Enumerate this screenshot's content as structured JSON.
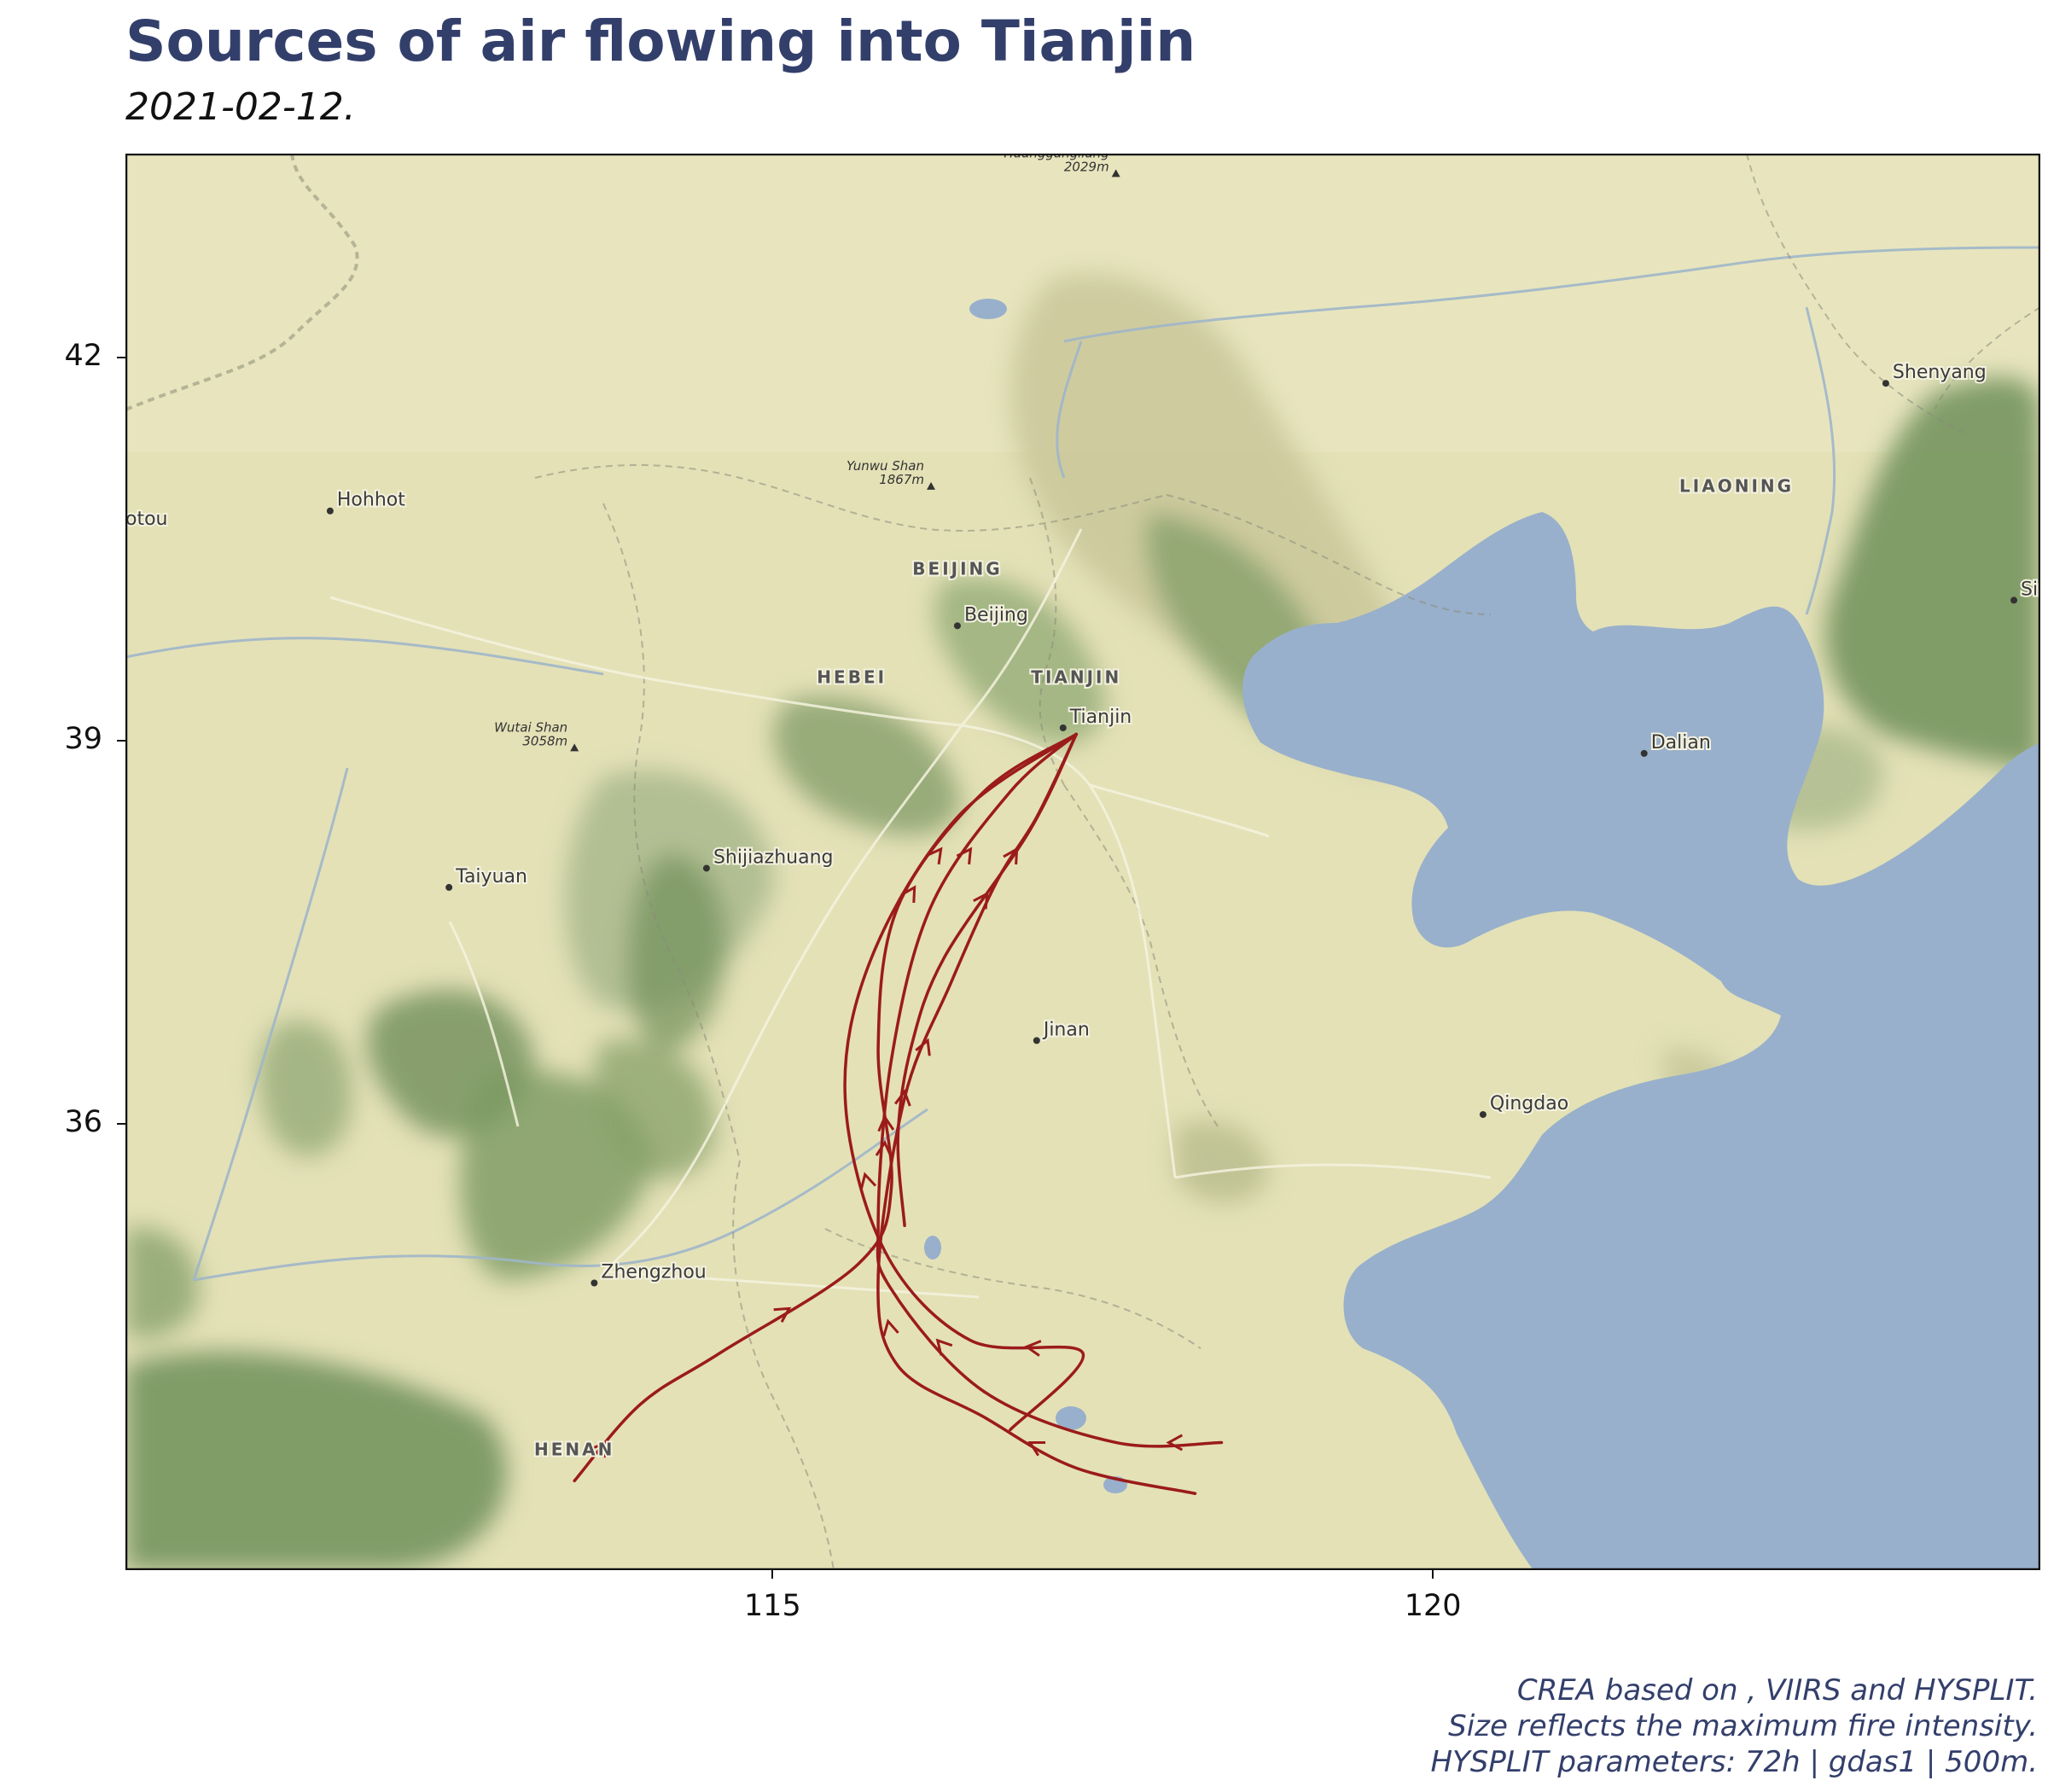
{
  "header": {
    "title": "Sources of air flowing into Tianjin",
    "subtitle": "2021-02-12."
  },
  "axes": {
    "x_ticks": [
      "115",
      "120"
    ],
    "y_ticks": [
      "42",
      "39",
      "36"
    ]
  },
  "map": {
    "cities": [
      {
        "name": "Beijing",
        "lon": 116.4,
        "lat": 39.9
      },
      {
        "name": "Tianjin",
        "lon": 117.2,
        "lat": 39.1
      },
      {
        "name": "Shijiazhuang",
        "lon": 114.5,
        "lat": 38.0
      },
      {
        "name": "Taiyuan",
        "lon": 112.55,
        "lat": 37.85
      },
      {
        "name": "Hohhot",
        "lon": 111.65,
        "lat": 40.8
      },
      {
        "name": "Jinan",
        "lon": 117.0,
        "lat": 36.65
      },
      {
        "name": "Qingdao",
        "lon": 120.38,
        "lat": 36.07
      },
      {
        "name": "Zhengzhou",
        "lon": 113.65,
        "lat": 34.75
      },
      {
        "name": "Dalian",
        "lon": 121.6,
        "lat": 38.9
      },
      {
        "name": "Shenyang",
        "lon": 123.43,
        "lat": 41.8
      },
      {
        "name": "Sinŭiju",
        "lon": 124.4,
        "lat": 40.1
      },
      {
        "name": "Baotou",
        "lon": 109.84,
        "lat": 40.65,
        "label": "otou"
      }
    ],
    "regions": [
      {
        "name": "BEIJING",
        "lon": 116.4,
        "lat": 40.3
      },
      {
        "name": "TIANJIN",
        "lon": 117.3,
        "lat": 39.45
      },
      {
        "name": "HEBEI",
        "lon": 115.6,
        "lat": 39.45
      },
      {
        "name": "LIAONING",
        "lon": 122.3,
        "lat": 40.95
      },
      {
        "name": "HENAN",
        "lon": 113.5,
        "lat": 33.4
      }
    ],
    "peaks": [
      {
        "name": "Huanggangliang",
        "elev": "2029m",
        "lon": 117.6,
        "lat": 43.45
      },
      {
        "name": "Yunwu Shan",
        "elev": "1867m",
        "lon": 116.2,
        "lat": 41.0
      },
      {
        "name": "Wutai Shan",
        "elev": "3058m",
        "lon": 113.5,
        "lat": 38.95
      }
    ],
    "colors": {
      "land": "#e6e4ba",
      "water": "#98b0cb",
      "mountain": "#6f8f5a",
      "trajectory": "#9b1b1b"
    }
  },
  "chart_data": {
    "type": "map-trajectories",
    "title": "Sources of air flowing into Tianjin",
    "subtitle": "2021-02-12.",
    "xlim": [
      110.1,
      124.6
    ],
    "ylim": [
      32.5,
      43.6
    ],
    "x_ticks": [
      115,
      120
    ],
    "y_ticks": [
      36,
      39,
      42
    ],
    "grid": false,
    "origin": {
      "name": "Tianjin",
      "lon": 117.3,
      "lat": 39.05
    },
    "trajectories": [
      {
        "points": [
          [
            117.3,
            39.05
          ],
          [
            116.6,
            38.6
          ],
          [
            115.95,
            37.7
          ],
          [
            115.8,
            36.6
          ],
          [
            115.9,
            35.5
          ],
          [
            115.65,
            34.9
          ],
          [
            114.6,
            34.2
          ],
          [
            114.0,
            33.8
          ],
          [
            113.5,
            33.2
          ]
        ]
      },
      {
        "points": [
          [
            117.3,
            39.05
          ],
          [
            116.4,
            38.4
          ],
          [
            115.75,
            37.3
          ],
          [
            115.55,
            36.2
          ],
          [
            115.85,
            35.0
          ],
          [
            116.5,
            34.3
          ],
          [
            117.35,
            34.2
          ],
          [
            116.8,
            33.6
          ]
        ]
      },
      {
        "points": [
          [
            117.3,
            39.05
          ],
          [
            116.8,
            38.6
          ],
          [
            116.2,
            37.7
          ],
          [
            115.9,
            36.5
          ],
          [
            115.8,
            35.2
          ],
          [
            115.9,
            34.7
          ],
          [
            116.6,
            33.9
          ],
          [
            117.6,
            33.5
          ],
          [
            118.4,
            33.5
          ]
        ]
      },
      {
        "points": [
          [
            117.3,
            39.05
          ],
          [
            116.95,
            38.3
          ],
          [
            116.3,
            37.3
          ],
          [
            116.05,
            36.6
          ],
          [
            115.95,
            35.9
          ],
          [
            116.0,
            35.2
          ]
        ]
      },
      {
        "points": [
          [
            117.3,
            39.05
          ],
          [
            117.0,
            38.4
          ],
          [
            116.7,
            37.9
          ],
          [
            116.35,
            37.1
          ],
          [
            116.0,
            36.2
          ],
          [
            115.8,
            34.8
          ],
          [
            115.95,
            34.1
          ],
          [
            116.6,
            33.7
          ],
          [
            117.3,
            33.3
          ],
          [
            118.2,
            33.1
          ]
        ]
      }
    ]
  },
  "caption": {
    "line1": "CREA based on , VIIRS and HYSPLIT.",
    "line2": "Size reflects the maximum fire intensity.",
    "line3": "HYSPLIT parameters: 72h | gdas1 | 500m."
  }
}
